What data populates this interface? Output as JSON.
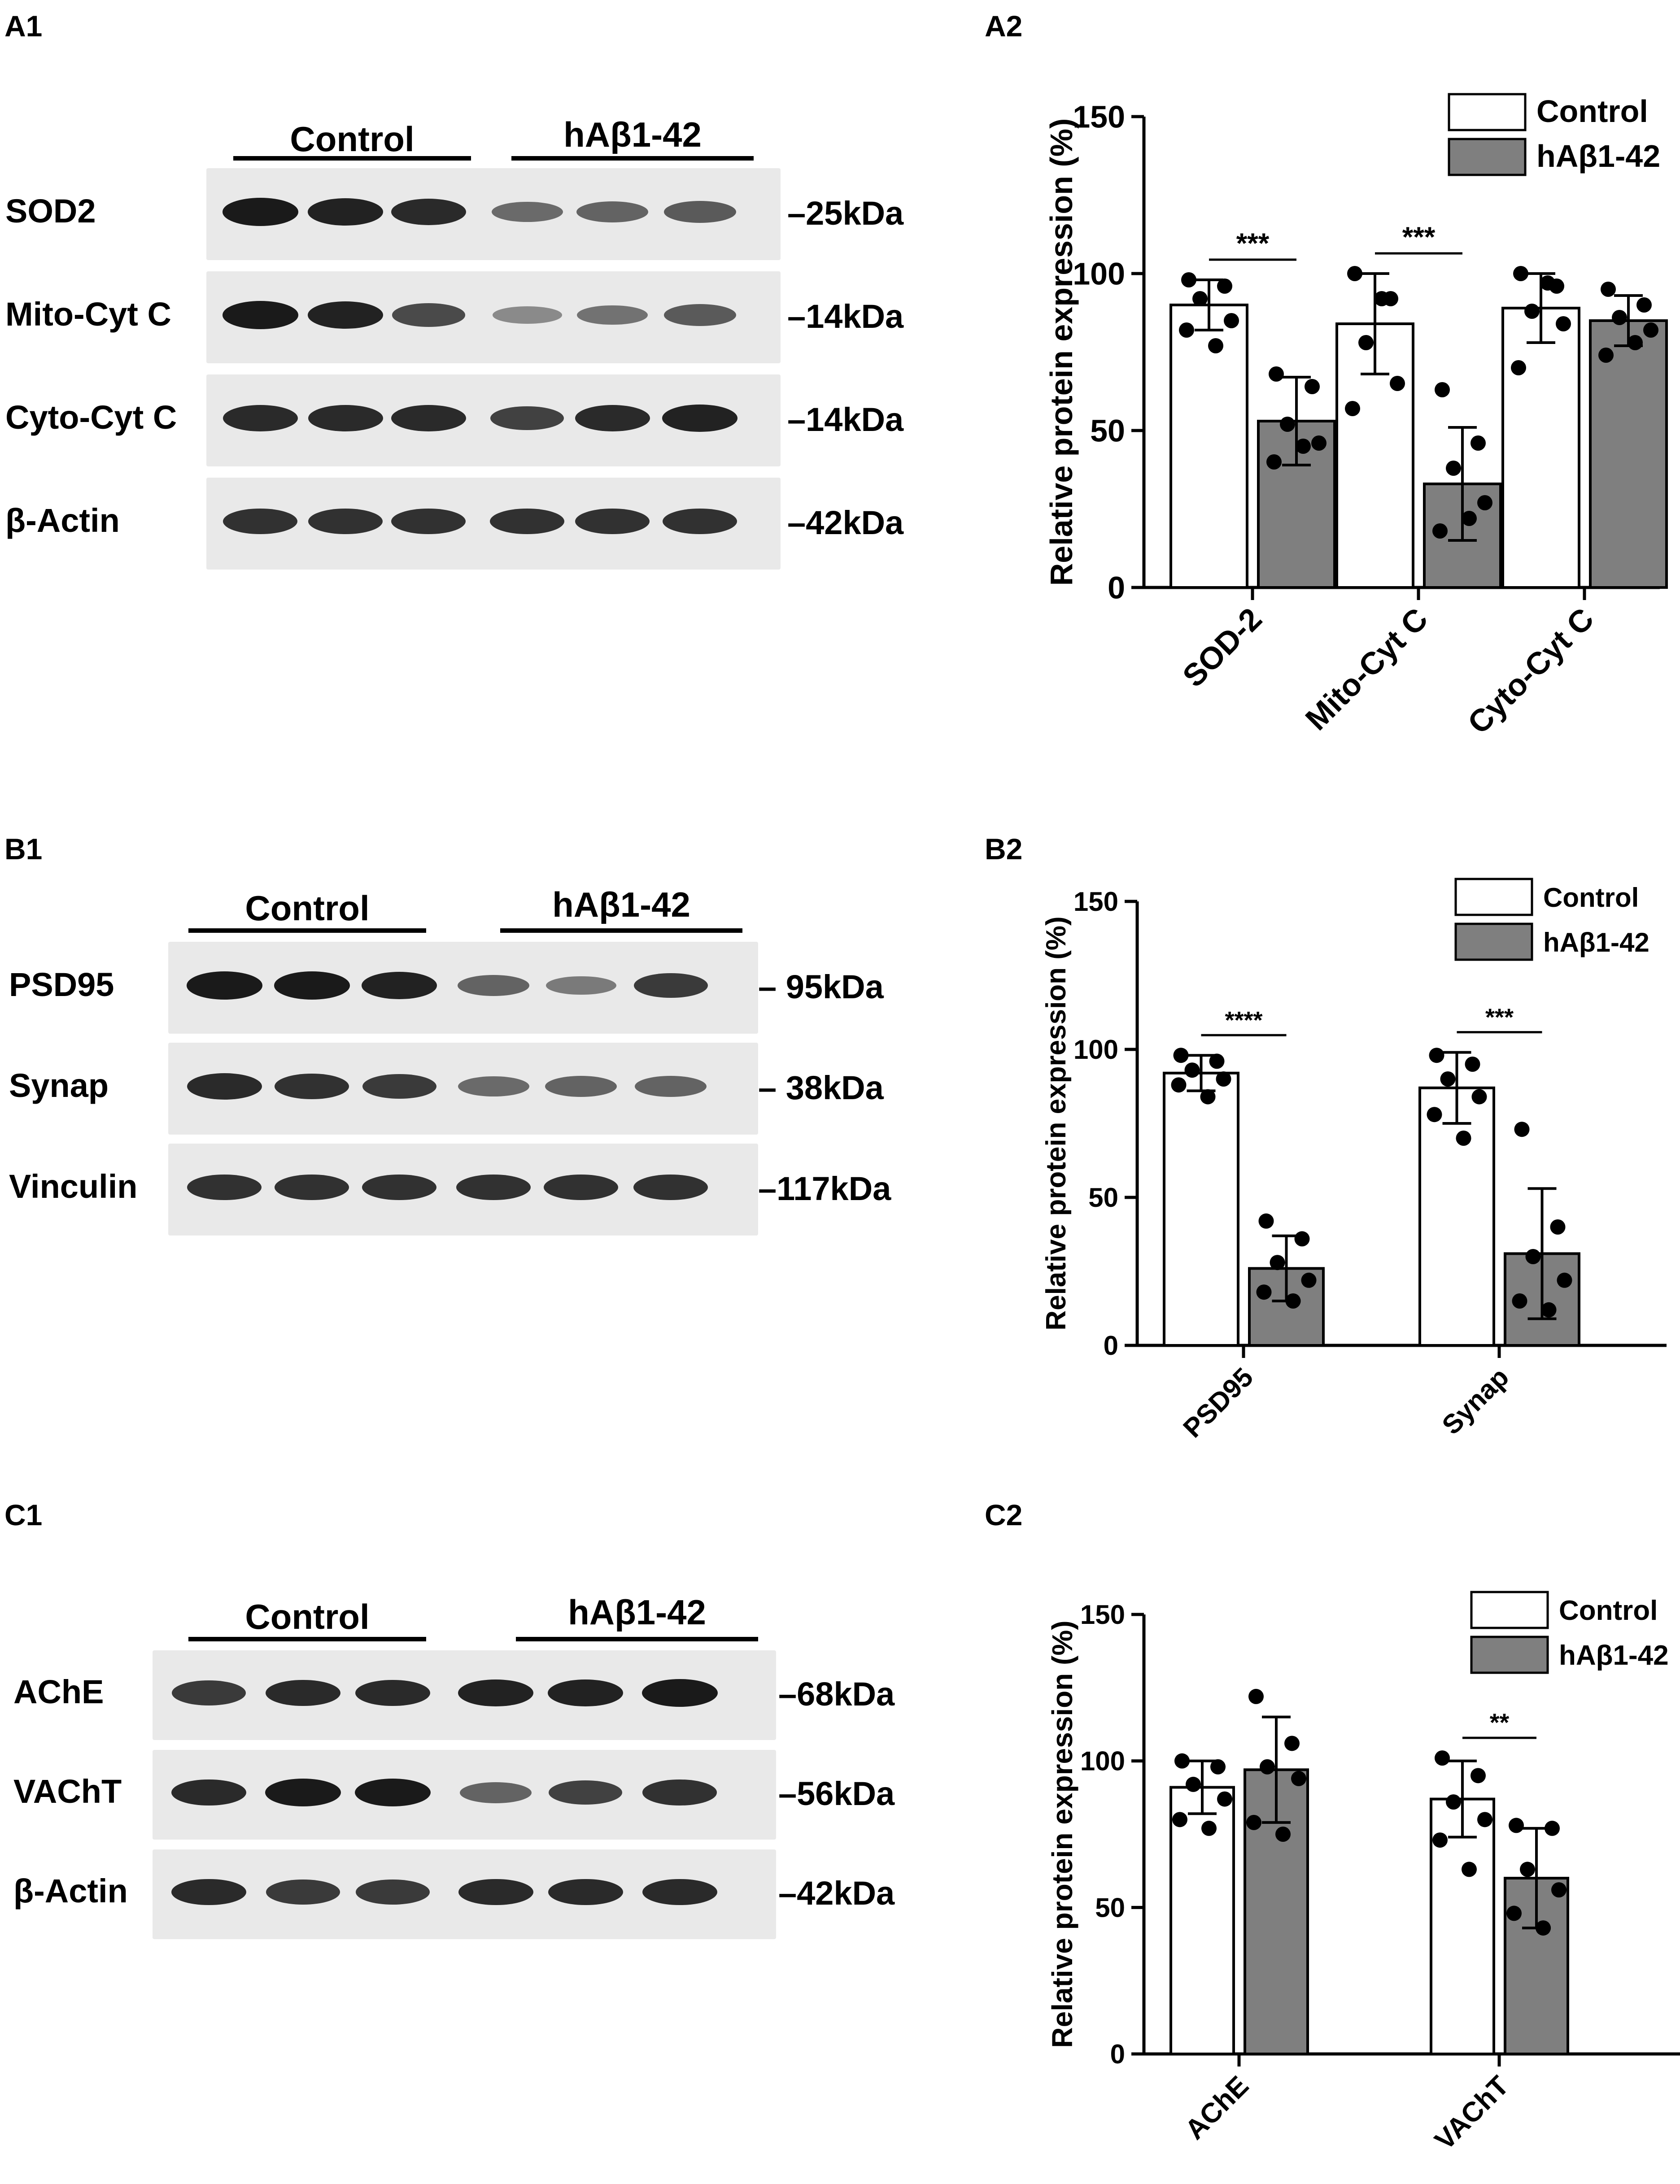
{
  "panels": {
    "A1": "A1",
    "A2": "A2",
    "B1": "B1",
    "B2": "B2",
    "C1": "C1",
    "C2": "C2"
  },
  "blots": [
    {
      "id": "A1",
      "group_labels": [
        "Control",
        "hAβ1-42"
      ],
      "rows": [
        {
          "label": "SOD2",
          "kda": "–25kDa",
          "intensity": [
            0.95,
            0.9,
            0.85,
            0.45,
            0.5,
            0.55
          ]
        },
        {
          "label": "Mito-Cyt C",
          "kda": "–14kDa",
          "intensity": [
            0.95,
            0.9,
            0.65,
            0.25,
            0.4,
            0.55
          ]
        },
        {
          "label": "Cyto-Cyt C",
          "kda": "–14kDa",
          "intensity": [
            0.85,
            0.85,
            0.85,
            0.7,
            0.85,
            0.9
          ]
        },
        {
          "label": "β-Actin",
          "kda": "–42kDa",
          "intensity": [
            0.8,
            0.8,
            0.8,
            0.8,
            0.8,
            0.8
          ]
        }
      ]
    },
    {
      "id": "B1",
      "group_labels": [
        "Control",
        "hAβ1-42"
      ],
      "rows": [
        {
          "label": "PSD95",
          "kda": "–  95kDa",
          "intensity": [
            0.95,
            0.95,
            0.9,
            0.5,
            0.35,
            0.75
          ]
        },
        {
          "label": "Synap",
          "kda": "–  38kDa",
          "intensity": [
            0.85,
            0.8,
            0.75,
            0.45,
            0.5,
            0.5
          ]
        },
        {
          "label": "Vinculin",
          "kda": "–117kDa",
          "intensity": [
            0.8,
            0.8,
            0.8,
            0.8,
            0.8,
            0.8
          ]
        }
      ]
    },
    {
      "id": "C1",
      "group_labels": [
        "Control",
        "hAβ1-42"
      ],
      "rows": [
        {
          "label": "AChE",
          "kda": "–68kDa",
          "intensity": [
            0.75,
            0.85,
            0.85,
            0.9,
            0.9,
            0.95
          ]
        },
        {
          "label": "VAChT",
          "kda": "–56kDa",
          "intensity": [
            0.85,
            0.95,
            0.95,
            0.5,
            0.7,
            0.8
          ]
        },
        {
          "label": "β-Actin",
          "kda": "–42kDa",
          "intensity": [
            0.85,
            0.75,
            0.75,
            0.85,
            0.85,
            0.85
          ]
        }
      ]
    }
  ],
  "chart_data": [
    {
      "id": "A2",
      "type": "bar",
      "ylabel": "Relative protein expression (%)",
      "ylim": [
        0,
        150
      ],
      "yticks": [
        0,
        50,
        100,
        150
      ],
      "categories": [
        "SOD-2",
        "Mito-Cyt C",
        "Cyto-Cyt C"
      ],
      "series": [
        {
          "name": "Control",
          "color": "#ffffff",
          "values": [
            90,
            84,
            89
          ],
          "sd": [
            8,
            16,
            11
          ],
          "points": [
            [
              98,
              96,
              92,
              85,
              82,
              77
            ],
            [
              100,
              92,
              78,
              65,
              57,
              92
            ],
            [
              100,
              96,
              88,
              84,
              70,
              97
            ]
          ]
        },
        {
          "name": "hAβ1-42",
          "color": "#7f7f7f",
          "values": [
            53,
            33,
            85
          ],
          "sd": [
            14,
            18,
            8
          ],
          "points": [
            [
              68,
              64,
              52,
              46,
              40,
              45
            ],
            [
              63,
              46,
              38,
              27,
              18,
              22
            ],
            [
              95,
              90,
              86,
              82,
              74,
              78
            ]
          ]
        }
      ],
      "significance": [
        "***",
        "***",
        ""
      ],
      "legend": "top-right",
      "grid": false
    },
    {
      "id": "B2",
      "type": "bar",
      "ylabel": "Relative protein expression (%)",
      "ylim": [
        0,
        150
      ],
      "yticks": [
        0,
        50,
        100,
        150
      ],
      "categories": [
        "PSD95",
        "Synap"
      ],
      "series": [
        {
          "name": "Control",
          "color": "#ffffff",
          "values": [
            92,
            87
          ],
          "sd": [
            6,
            12
          ],
          "points": [
            [
              98,
              96,
              93,
              90,
              88,
              84
            ],
            [
              98,
              95,
              90,
              84,
              78,
              70
            ]
          ]
        },
        {
          "name": "hAβ1-42",
          "color": "#7f7f7f",
          "values": [
            26,
            31
          ],
          "sd": [
            11,
            22
          ],
          "points": [
            [
              42,
              36,
              28,
              22,
              18,
              15
            ],
            [
              73,
              40,
              30,
              22,
              15,
              12
            ]
          ]
        }
      ],
      "significance": [
        "****",
        "***"
      ],
      "legend": "top-right",
      "grid": false
    },
    {
      "id": "C2",
      "type": "bar",
      "ylabel": "Relative protein expression (%)",
      "ylim": [
        0,
        150
      ],
      "yticks": [
        0,
        50,
        100,
        150
      ],
      "categories": [
        "AChE",
        "VAChT"
      ],
      "series": [
        {
          "name": "Control",
          "color": "#ffffff",
          "values": [
            91,
            87
          ],
          "sd": [
            9,
            13
          ],
          "points": [
            [
              100,
              98,
              92,
              87,
              80,
              77
            ],
            [
              101,
              95,
              86,
              80,
              73,
              63
            ]
          ]
        },
        {
          "name": "hAβ1-42",
          "color": "#7f7f7f",
          "values": [
            97,
            60
          ],
          "sd": [
            18,
            17
          ],
          "points": [
            [
              122,
              106,
              98,
              94,
              79,
              75
            ],
            [
              78,
              77,
              63,
              56,
              48,
              43
            ]
          ]
        }
      ],
      "significance": [
        "",
        "**"
      ],
      "legend": "top-right",
      "grid": false
    }
  ]
}
